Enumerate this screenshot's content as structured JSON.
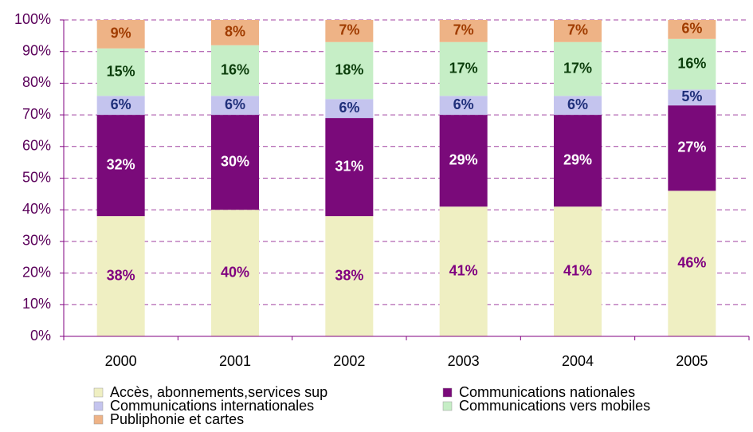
{
  "chart_data": {
    "type": "stacked_bar",
    "categories": [
      "2000",
      "2001",
      "2002",
      "2003",
      "2004",
      "2005"
    ],
    "series": [
      {
        "name": "Accès, abonnements,services sup",
        "color": "#efefc2",
        "label_color": "#800080",
        "values": [
          38,
          40,
          38,
          41,
          41,
          46
        ],
        "value_labels": [
          "38%",
          "40%",
          "38%",
          "41%",
          "41%",
          "46%"
        ]
      },
      {
        "name": "Communications nationales",
        "color": "#7a0a7a",
        "label_color": "#ffffff",
        "values": [
          32,
          30,
          31,
          29,
          29,
          27
        ],
        "value_labels": [
          "32%",
          "30%",
          "31%",
          "29%",
          "29%",
          "27%"
        ]
      },
      {
        "name": "Communications internationales",
        "color": "#c4c4ee",
        "label_color": "#1f2f7a",
        "values": [
          6,
          6,
          6,
          6,
          6,
          5
        ],
        "value_labels": [
          "6%",
          "6%",
          "6%",
          "6%",
          "6%",
          "5%"
        ]
      },
      {
        "name": "Communications vers mobiles",
        "color": "#c6eec6",
        "label_color": "#0b3d0b",
        "values": [
          15,
          16,
          18,
          17,
          17,
          16
        ],
        "value_labels": [
          "15%",
          "16%",
          "18%",
          "17%",
          "17%",
          "16%"
        ]
      },
      {
        "name": "Publiphonie et cartes",
        "color": "#eeb386",
        "label_color": "#a03c00",
        "values": [
          9,
          8,
          7,
          7,
          7,
          6
        ],
        "value_labels": [
          "9%",
          "8%",
          "7%",
          "7%",
          "7%",
          "6%"
        ]
      }
    ],
    "ylim": [
      0,
      100
    ],
    "yticks": [
      {
        "value": 0,
        "label": "0%"
      },
      {
        "value": 10,
        "label": "10%"
      },
      {
        "value": 20,
        "label": "20%"
      },
      {
        "value": 30,
        "label": "30%"
      },
      {
        "value": 40,
        "label": "40%"
      },
      {
        "value": 50,
        "label": "50%"
      },
      {
        "value": 60,
        "label": "60%"
      },
      {
        "value": 70,
        "label": "70%"
      },
      {
        "value": 80,
        "label": "80%"
      },
      {
        "value": 90,
        "label": "90%"
      },
      {
        "value": 100,
        "label": "100%"
      }
    ],
    "grid": true,
    "legend": "bottom"
  }
}
